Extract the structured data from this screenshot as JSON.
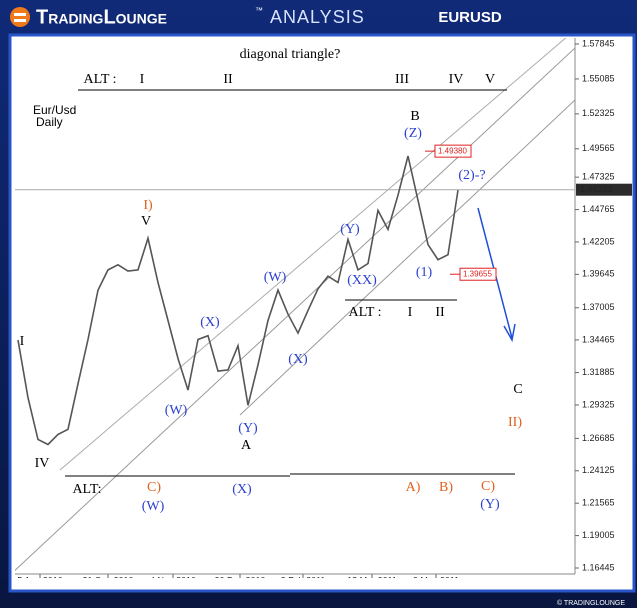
{
  "header": {
    "brand": "TradingLounge",
    "tm": "™",
    "subtitle": "ANALYSIS",
    "symbol": "EURUSD"
  },
  "chart_data": {
    "type": "line",
    "title": "diagonal triangle?",
    "instrument": "Eur/Usd",
    "timeframe": "Daily",
    "values": [
      1.3446,
      1.299,
      1.266,
      1.262,
      1.27,
      1.274,
      1.31,
      1.345,
      1.384,
      1.4,
      1.404,
      1.399,
      1.4,
      1.425,
      1.39,
      1.36,
      1.33,
      1.305,
      1.345,
      1.348,
      1.32,
      1.321,
      1.34,
      1.293,
      1.325,
      1.36,
      1.384,
      1.365,
      1.35,
      1.368,
      1.385,
      1.395,
      1.39,
      1.424,
      1.4,
      1.405,
      1.447,
      1.432,
      1.459,
      1.49,
      1.455,
      1.42,
      1.408,
      1.412,
      1.463
    ],
    "color": "#555555",
    "ylim": [
      1.16445,
      1.57845
    ],
    "yticks": [
      1.57845,
      1.55085,
      1.52325,
      1.49565,
      1.47325,
      1.44765,
      1.42205,
      1.39645,
      1.37005,
      1.34465,
      1.31885,
      1.29325,
      1.26685,
      1.24125,
      1.21565,
      1.19005,
      1.16445
    ],
    "xtick_labels": [
      "5 Aug 2010",
      "21 Sep 2010",
      "4 Nov 2010",
      "20 Dec 2010",
      "2 Feb 2011",
      "18 Mar 2011",
      "3 May 2011"
    ],
    "price_levels": [
      1.46333,
      1.4938,
      1.39655
    ],
    "price_level_labels": [
      "1.46333",
      "1.49380",
      "1.39655"
    ],
    "annotations": [
      {
        "text": "ALT :",
        "color": "#000000"
      },
      {
        "text": "I",
        "color": "#000000"
      },
      {
        "text": "II",
        "color": "#000000"
      },
      {
        "text": "III",
        "color": "#000000"
      },
      {
        "text": "IV",
        "color": "#000000"
      },
      {
        "text": "V",
        "color": "#000000"
      },
      {
        "text": "B",
        "color": "#000000"
      },
      {
        "text": "(Z)",
        "color": "#2a3fd0"
      },
      {
        "text": "(2)-?",
        "color": "#2a3fd0"
      },
      {
        "text": "I)",
        "color": "#e0601c"
      },
      {
        "text": "V",
        "color": "#000000"
      },
      {
        "text": "(Y)",
        "color": "#2a3fd0"
      },
      {
        "text": "(W)",
        "color": "#2a3fd0"
      },
      {
        "text": "(XX)",
        "color": "#2a3fd0"
      },
      {
        "text": "(1)",
        "color": "#2a3fd0"
      },
      {
        "text": "ALT :",
        "color": "#000000"
      },
      {
        "text": "I",
        "color": "#000000"
      },
      {
        "text": "II",
        "color": "#000000"
      },
      {
        "text": "(X)",
        "color": "#2a3fd0"
      },
      {
        "text": "I",
        "color": "#000000"
      },
      {
        "text": "(X)",
        "color": "#2a3fd0"
      },
      {
        "text": "(W)",
        "color": "#2a3fd0"
      },
      {
        "text": "(Y)",
        "color": "#2a3fd0"
      },
      {
        "text": "A",
        "color": "#000000"
      },
      {
        "text": "IV",
        "color": "#000000"
      },
      {
        "text": "C",
        "color": "#000000"
      },
      {
        "text": "II)",
        "color": "#e0601c"
      },
      {
        "text": "ALT:",
        "color": "#000000"
      },
      {
        "text": "C)",
        "color": "#e0601c"
      },
      {
        "text": "(W)",
        "color": "#2a3fd0"
      },
      {
        "text": "(X)",
        "color": "#2a3fd0"
      },
      {
        "text": "A)",
        "color": "#e0601c"
      },
      {
        "text": "B)",
        "color": "#e0601c"
      },
      {
        "text": "C)",
        "color": "#e0601c"
      },
      {
        "text": "(Y)",
        "color": "#2a3fd0"
      }
    ]
  },
  "footer": "© TRADINGLOUNGE"
}
